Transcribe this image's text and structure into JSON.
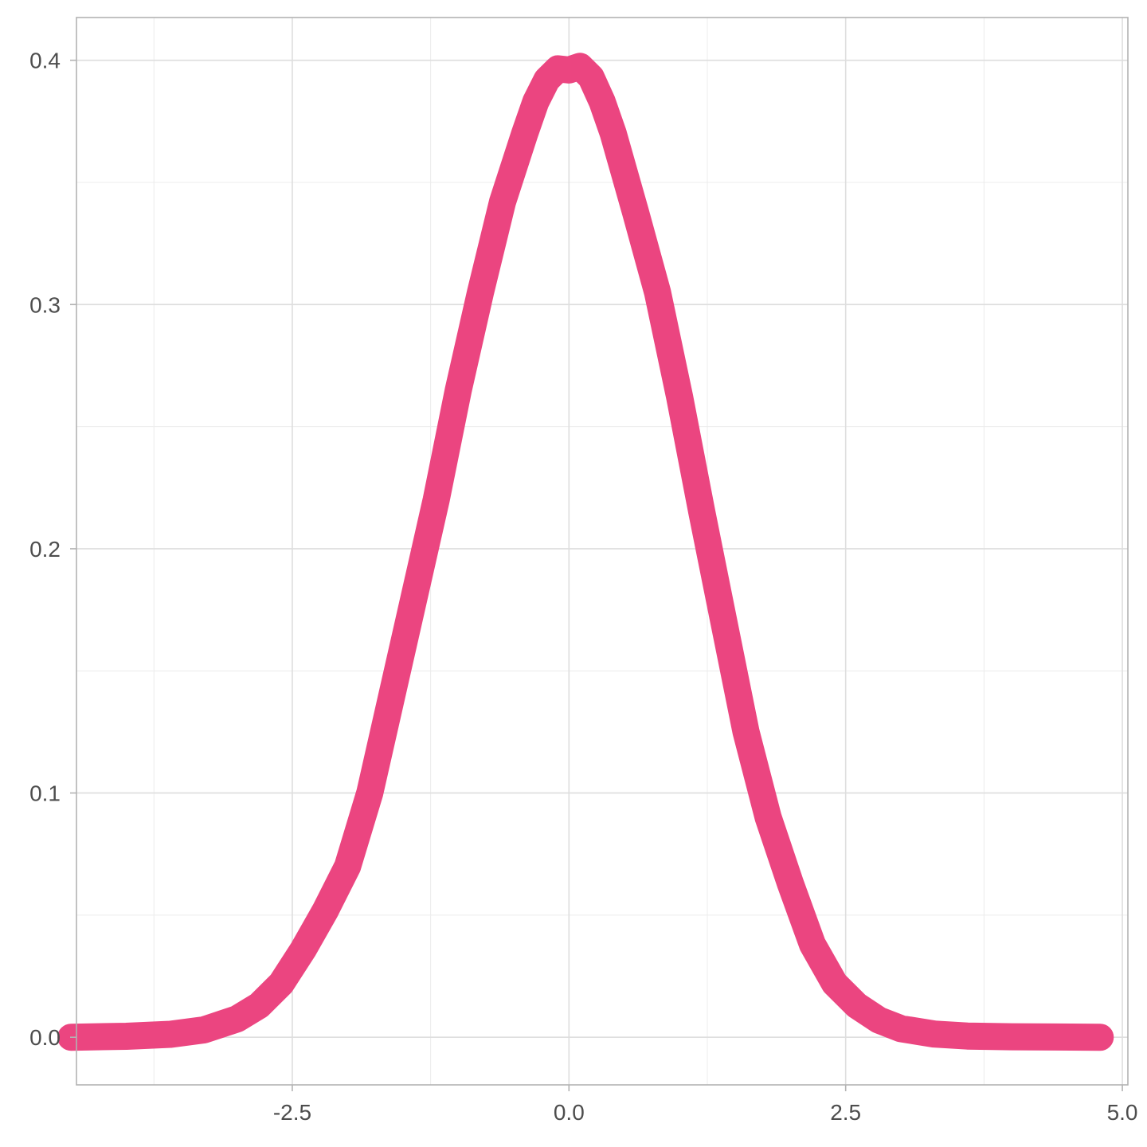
{
  "chart_data": {
    "type": "line",
    "title": "",
    "xlabel": "",
    "ylabel": "",
    "xlim": [
      -4.45,
      5.05
    ],
    "ylim": [
      -0.0195,
      0.4175
    ],
    "x_ticks": [
      -2.5,
      0.0,
      2.5,
      5.0
    ],
    "x_tick_labels": [
      "-2.5",
      "0.0",
      "2.5",
      "5.0"
    ],
    "x_minor": [
      -3.75,
      -1.25,
      1.25,
      3.75
    ],
    "y_ticks": [
      0.0,
      0.1,
      0.2,
      0.3,
      0.4
    ],
    "y_tick_labels": [
      "0.0",
      "0.1",
      "0.2",
      "0.3",
      "0.4"
    ],
    "y_minor": [
      0.05,
      0.15,
      0.25,
      0.35
    ],
    "grid": true,
    "legend": "none",
    "line_color": "#EB4580",
    "series": [
      {
        "x": [
          -4.5,
          -4.0,
          -3.6,
          -3.3,
          -3.0,
          -2.8,
          -2.6,
          -2.5,
          -2.4,
          -2.2,
          -2.0,
          -1.8,
          -1.6,
          -1.4,
          -1.2,
          -1.0,
          -0.8,
          -0.6,
          -0.4,
          -0.3,
          -0.2,
          -0.1,
          0.0,
          0.1,
          0.2,
          0.3,
          0.4,
          0.6,
          0.8,
          1.0,
          1.2,
          1.4,
          1.6,
          1.8,
          2.0,
          2.2,
          2.4,
          2.6,
          2.8,
          3.0,
          3.3,
          3.6,
          4.0,
          4.4,
          4.8
        ],
        "y": [
          0.0,
          0.0004,
          0.0012,
          0.003,
          0.0075,
          0.013,
          0.022,
          0.029,
          0.036,
          0.052,
          0.07,
          0.1,
          0.14,
          0.18,
          0.22,
          0.265,
          0.305,
          0.342,
          0.37,
          0.383,
          0.392,
          0.3965,
          0.396,
          0.3975,
          0.393,
          0.383,
          0.37,
          0.338,
          0.305,
          0.262,
          0.215,
          0.17,
          0.125,
          0.09,
          0.063,
          0.038,
          0.022,
          0.013,
          0.007,
          0.0035,
          0.0013,
          0.0005,
          0.0002,
          0.0001,
          0.0
        ]
      }
    ]
  }
}
